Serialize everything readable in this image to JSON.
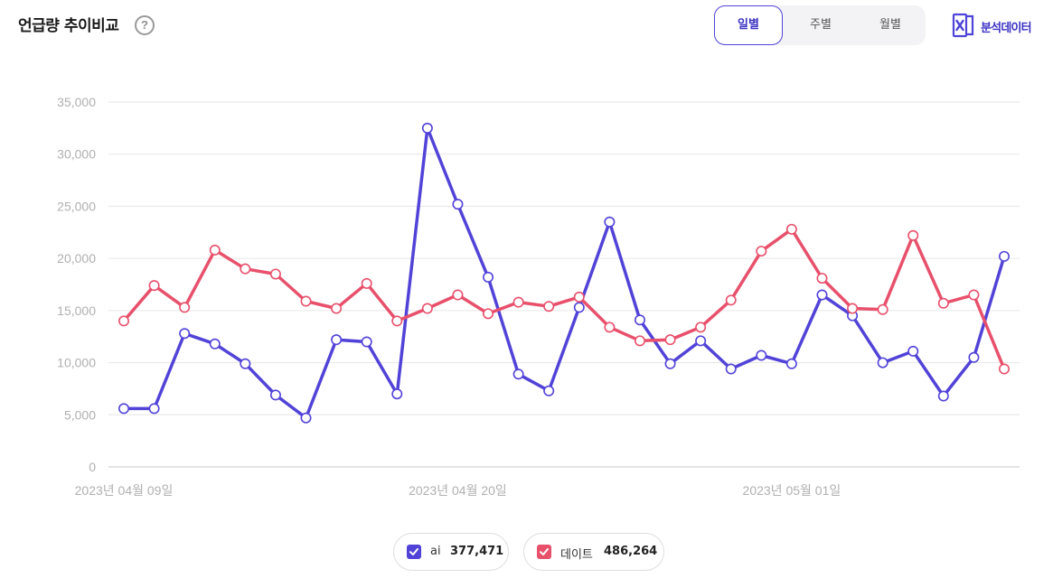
{
  "header": {
    "title": "언급량 추이비교",
    "help_icon": "question-circle-icon"
  },
  "period_tabs": [
    {
      "label": "일별",
      "active": true
    },
    {
      "label": "주별",
      "active": false
    },
    {
      "label": "월별",
      "active": false
    }
  ],
  "export": {
    "label": "분석데이터",
    "icon": "excel-icon",
    "color": "#4f44d8"
  },
  "legend": [
    {
      "name": "ai",
      "total": "377,471",
      "color": "#5243d8",
      "checked": true
    },
    {
      "name": "데이트",
      "total": "486,264",
      "color": "#e8506c",
      "checked": true
    }
  ],
  "chart_data": {
    "type": "line",
    "ylim": [
      0,
      35000
    ],
    "yticks": [
      0,
      5000,
      10000,
      15000,
      20000,
      25000,
      30000,
      35000
    ],
    "ytick_labels": [
      "0",
      "5,000",
      "10,000",
      "15,000",
      "20,000",
      "25,000",
      "30,000",
      "35,000"
    ],
    "x_tick_labels": [
      {
        "index": 0,
        "label": "2023년 04월 09일"
      },
      {
        "index": 11,
        "label": "2023년 04월 20일"
      },
      {
        "index": 22,
        "label": "2023년 05월 01일"
      }
    ],
    "grid": true,
    "series": [
      {
        "name": "ai",
        "color": "#5243d8",
        "values": [
          5600,
          5600,
          12800,
          11800,
          9900,
          6900,
          4700,
          12200,
          12000,
          7000,
          32500,
          25200,
          18200,
          8900,
          7300,
          15300,
          23500,
          14100,
          9900,
          12100,
          9400,
          10700,
          9900,
          16500,
          14500,
          10000,
          11100,
          6800,
          10500,
          20200
        ]
      },
      {
        "name": "데이트",
        "color": "#e8506c",
        "values": [
          14000,
          17400,
          15300,
          20800,
          19000,
          18500,
          15900,
          15200,
          17600,
          14000,
          15200,
          16500,
          14700,
          15800,
          15400,
          16300,
          13400,
          12100,
          12200,
          13400,
          16000,
          20700,
          22800,
          18100,
          15200,
          15100,
          22200,
          15700,
          16500,
          9400
        ]
      }
    ]
  }
}
